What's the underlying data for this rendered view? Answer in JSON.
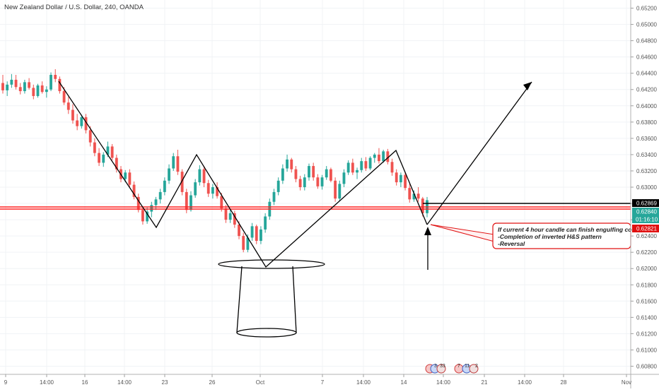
{
  "chart_data": {
    "type": "candlestick",
    "title": "New Zealand Dollar / U.S. Dollar, 240, OANDA",
    "ylim": [
      0.607,
      0.653
    ],
    "y_ticks": [
      "0.65200",
      "0.65000",
      "0.64800",
      "0.64600",
      "0.64400",
      "0.64200",
      "0.64000",
      "0.63800",
      "0.63600",
      "0.63400",
      "0.63200",
      "0.63000",
      "0.62800",
      "0.62600",
      "0.62400",
      "0.62200",
      "0.62000",
      "0.61800",
      "0.61600",
      "0.61400",
      "0.61200",
      "0.61000",
      "0.60800"
    ],
    "x_ticks": [
      "9",
      "14:00",
      "16",
      "14:00",
      "23",
      "26",
      "Oct",
      "7",
      "14:00",
      "14",
      "14:00",
      "21",
      "14:00",
      "28",
      "Nov"
    ],
    "price_labels": {
      "horizontal_line": "0.62869",
      "current_price": "0.62840",
      "countdown": "01:16:10",
      "red_line": "0.62821"
    },
    "annotation": {
      "line1": "If current 4 hour candle can finish engulfing co",
      "line2": "-Completion of inverted H&S pattern",
      "line3": "-Reversal"
    },
    "event_icons": [
      "3",
      "33",
      "7",
      "11",
      "2"
    ],
    "candles": [
      {
        "o": 0.6428,
        "h": 0.6438,
        "l": 0.6415,
        "c": 0.6419
      },
      {
        "o": 0.6419,
        "h": 0.643,
        "l": 0.6412,
        "c": 0.6426
      },
      {
        "o": 0.6426,
        "h": 0.6439,
        "l": 0.6422,
        "c": 0.6432
      },
      {
        "o": 0.6432,
        "h": 0.6438,
        "l": 0.642,
        "c": 0.6423
      },
      {
        "o": 0.6423,
        "h": 0.6428,
        "l": 0.6414,
        "c": 0.6418
      },
      {
        "o": 0.6418,
        "h": 0.6432,
        "l": 0.6415,
        "c": 0.6429
      },
      {
        "o": 0.6429,
        "h": 0.6434,
        "l": 0.642,
        "c": 0.6422
      },
      {
        "o": 0.6422,
        "h": 0.6426,
        "l": 0.6408,
        "c": 0.6412
      },
      {
        "o": 0.6412,
        "h": 0.6427,
        "l": 0.641,
        "c": 0.6425
      },
      {
        "o": 0.6425,
        "h": 0.643,
        "l": 0.6415,
        "c": 0.6417
      },
      {
        "o": 0.6417,
        "h": 0.6424,
        "l": 0.641,
        "c": 0.642
      },
      {
        "o": 0.642,
        "h": 0.6441,
        "l": 0.6418,
        "c": 0.6438
      },
      {
        "o": 0.6438,
        "h": 0.6445,
        "l": 0.6429,
        "c": 0.6433
      },
      {
        "o": 0.6433,
        "h": 0.6436,
        "l": 0.6415,
        "c": 0.6418
      },
      {
        "o": 0.6418,
        "h": 0.6423,
        "l": 0.6401,
        "c": 0.6404
      },
      {
        "o": 0.6404,
        "h": 0.6411,
        "l": 0.639,
        "c": 0.6395
      },
      {
        "o": 0.6395,
        "h": 0.6402,
        "l": 0.6378,
        "c": 0.6382
      },
      {
        "o": 0.6382,
        "h": 0.639,
        "l": 0.637,
        "c": 0.6375
      },
      {
        "o": 0.6375,
        "h": 0.6389,
        "l": 0.6372,
        "c": 0.6386
      },
      {
        "o": 0.6386,
        "h": 0.639,
        "l": 0.6366,
        "c": 0.637
      },
      {
        "o": 0.637,
        "h": 0.6375,
        "l": 0.635,
        "c": 0.6355
      },
      {
        "o": 0.6355,
        "h": 0.636,
        "l": 0.6338,
        "c": 0.6342
      },
      {
        "o": 0.6342,
        "h": 0.6348,
        "l": 0.6326,
        "c": 0.633
      },
      {
        "o": 0.633,
        "h": 0.6343,
        "l": 0.6325,
        "c": 0.634
      },
      {
        "o": 0.634,
        "h": 0.6356,
        "l": 0.6337,
        "c": 0.635
      },
      {
        "o": 0.635,
        "h": 0.6353,
        "l": 0.6333,
        "c": 0.6336
      },
      {
        "o": 0.6336,
        "h": 0.634,
        "l": 0.6318,
        "c": 0.6322
      },
      {
        "o": 0.6322,
        "h": 0.6326,
        "l": 0.6306,
        "c": 0.631
      },
      {
        "o": 0.631,
        "h": 0.6321,
        "l": 0.6306,
        "c": 0.6318
      },
      {
        "o": 0.6318,
        "h": 0.6322,
        "l": 0.63,
        "c": 0.6303
      },
      {
        "o": 0.6303,
        "h": 0.6307,
        "l": 0.6285,
        "c": 0.6288
      },
      {
        "o": 0.6288,
        "h": 0.6292,
        "l": 0.6269,
        "c": 0.6272
      },
      {
        "o": 0.6272,
        "h": 0.6276,
        "l": 0.6254,
        "c": 0.6258
      },
      {
        "o": 0.6258,
        "h": 0.6275,
        "l": 0.6255,
        "c": 0.627
      },
      {
        "o": 0.627,
        "h": 0.6282,
        "l": 0.6263,
        "c": 0.6278
      },
      {
        "o": 0.6278,
        "h": 0.6288,
        "l": 0.6272,
        "c": 0.6285
      },
      {
        "o": 0.6285,
        "h": 0.6298,
        "l": 0.628,
        "c": 0.6294
      },
      {
        "o": 0.6294,
        "h": 0.6312,
        "l": 0.629,
        "c": 0.6308
      },
      {
        "o": 0.6308,
        "h": 0.6328,
        "l": 0.6304,
        "c": 0.6323
      },
      {
        "o": 0.6323,
        "h": 0.6342,
        "l": 0.632,
        "c": 0.6338
      },
      {
        "o": 0.6338,
        "h": 0.6346,
        "l": 0.6315,
        "c": 0.6319
      },
      {
        "o": 0.6319,
        "h": 0.6322,
        "l": 0.629,
        "c": 0.6294
      },
      {
        "o": 0.6294,
        "h": 0.6298,
        "l": 0.6268,
        "c": 0.6272
      },
      {
        "o": 0.6272,
        "h": 0.6295,
        "l": 0.627,
        "c": 0.629
      },
      {
        "o": 0.629,
        "h": 0.631,
        "l": 0.6287,
        "c": 0.6306
      },
      {
        "o": 0.6306,
        "h": 0.6327,
        "l": 0.6302,
        "c": 0.6322
      },
      {
        "o": 0.6322,
        "h": 0.6326,
        "l": 0.63,
        "c": 0.6305
      },
      {
        "o": 0.6305,
        "h": 0.6309,
        "l": 0.6288,
        "c": 0.6292
      },
      {
        "o": 0.6292,
        "h": 0.6304,
        "l": 0.6286,
        "c": 0.63
      },
      {
        "o": 0.63,
        "h": 0.6306,
        "l": 0.6286,
        "c": 0.6289
      },
      {
        "o": 0.6289,
        "h": 0.6293,
        "l": 0.627,
        "c": 0.6274
      },
      {
        "o": 0.6274,
        "h": 0.6278,
        "l": 0.6256,
        "c": 0.626
      },
      {
        "o": 0.626,
        "h": 0.6272,
        "l": 0.6256,
        "c": 0.6268
      },
      {
        "o": 0.6268,
        "h": 0.6271,
        "l": 0.625,
        "c": 0.6254
      },
      {
        "o": 0.6254,
        "h": 0.6258,
        "l": 0.6236,
        "c": 0.624
      },
      {
        "o": 0.624,
        "h": 0.6244,
        "l": 0.622,
        "c": 0.6223
      },
      {
        "o": 0.6223,
        "h": 0.6242,
        "l": 0.622,
        "c": 0.6238
      },
      {
        "o": 0.6238,
        "h": 0.6256,
        "l": 0.6234,
        "c": 0.6252
      },
      {
        "o": 0.6252,
        "h": 0.6254,
        "l": 0.623,
        "c": 0.6234
      },
      {
        "o": 0.6234,
        "h": 0.6252,
        "l": 0.623,
        "c": 0.6248
      },
      {
        "o": 0.6248,
        "h": 0.6268,
        "l": 0.6244,
        "c": 0.6264
      },
      {
        "o": 0.6264,
        "h": 0.6286,
        "l": 0.626,
        "c": 0.6282
      },
      {
        "o": 0.6282,
        "h": 0.6298,
        "l": 0.6278,
        "c": 0.6294
      },
      {
        "o": 0.6294,
        "h": 0.6312,
        "l": 0.629,
        "c": 0.6308
      },
      {
        "o": 0.6308,
        "h": 0.6328,
        "l": 0.6304,
        "c": 0.6323
      },
      {
        "o": 0.6323,
        "h": 0.634,
        "l": 0.6319,
        "c": 0.6334
      },
      {
        "o": 0.6334,
        "h": 0.6336,
        "l": 0.6318,
        "c": 0.6322
      },
      {
        "o": 0.6322,
        "h": 0.6326,
        "l": 0.6306,
        "c": 0.631
      },
      {
        "o": 0.631,
        "h": 0.6314,
        "l": 0.6296,
        "c": 0.63
      },
      {
        "o": 0.63,
        "h": 0.6316,
        "l": 0.6296,
        "c": 0.6312
      },
      {
        "o": 0.6312,
        "h": 0.6329,
        "l": 0.6308,
        "c": 0.6326
      },
      {
        "o": 0.6326,
        "h": 0.633,
        "l": 0.6308,
        "c": 0.6312
      },
      {
        "o": 0.6312,
        "h": 0.6316,
        "l": 0.6298,
        "c": 0.6301
      },
      {
        "o": 0.6301,
        "h": 0.6315,
        "l": 0.6297,
        "c": 0.6312
      },
      {
        "o": 0.6312,
        "h": 0.6326,
        "l": 0.6309,
        "c": 0.6322
      },
      {
        "o": 0.6322,
        "h": 0.6324,
        "l": 0.6306,
        "c": 0.6308
      },
      {
        "o": 0.6308,
        "h": 0.6312,
        "l": 0.6282,
        "c": 0.6286
      },
      {
        "o": 0.6286,
        "h": 0.6308,
        "l": 0.6283,
        "c": 0.6304
      },
      {
        "o": 0.6304,
        "h": 0.6322,
        "l": 0.63,
        "c": 0.6318
      },
      {
        "o": 0.6318,
        "h": 0.6333,
        "l": 0.6315,
        "c": 0.633
      },
      {
        "o": 0.633,
        "h": 0.6335,
        "l": 0.6315,
        "c": 0.6318
      },
      {
        "o": 0.6318,
        "h": 0.6324,
        "l": 0.631,
        "c": 0.6321
      },
      {
        "o": 0.6321,
        "h": 0.6336,
        "l": 0.6318,
        "c": 0.6332
      },
      {
        "o": 0.6332,
        "h": 0.6337,
        "l": 0.632,
        "c": 0.6323
      },
      {
        "o": 0.6323,
        "h": 0.6338,
        "l": 0.6321,
        "c": 0.6336
      },
      {
        "o": 0.6336,
        "h": 0.6342,
        "l": 0.633,
        "c": 0.634
      },
      {
        "o": 0.634,
        "h": 0.6348,
        "l": 0.6329,
        "c": 0.6332
      },
      {
        "o": 0.6332,
        "h": 0.6346,
        "l": 0.633,
        "c": 0.6344
      },
      {
        "o": 0.6344,
        "h": 0.6347,
        "l": 0.6328,
        "c": 0.6331
      },
      {
        "o": 0.6331,
        "h": 0.6335,
        "l": 0.6314,
        "c": 0.6318
      },
      {
        "o": 0.6318,
        "h": 0.6322,
        "l": 0.6302,
        "c": 0.6306
      },
      {
        "o": 0.6306,
        "h": 0.6318,
        "l": 0.63,
        "c": 0.6315
      },
      {
        "o": 0.6315,
        "h": 0.6319,
        "l": 0.6296,
        "c": 0.6299
      },
      {
        "o": 0.6299,
        "h": 0.6304,
        "l": 0.6281,
        "c": 0.6285
      },
      {
        "o": 0.6285,
        "h": 0.6296,
        "l": 0.6282,
        "c": 0.6292
      },
      {
        "o": 0.6292,
        "h": 0.63,
        "l": 0.6282,
        "c": 0.6286
      },
      {
        "o": 0.6286,
        "h": 0.6288,
        "l": 0.6264,
        "c": 0.6268
      },
      {
        "o": 0.6268,
        "h": 0.6288,
        "l": 0.6263,
        "c": 0.6284
      }
    ]
  }
}
